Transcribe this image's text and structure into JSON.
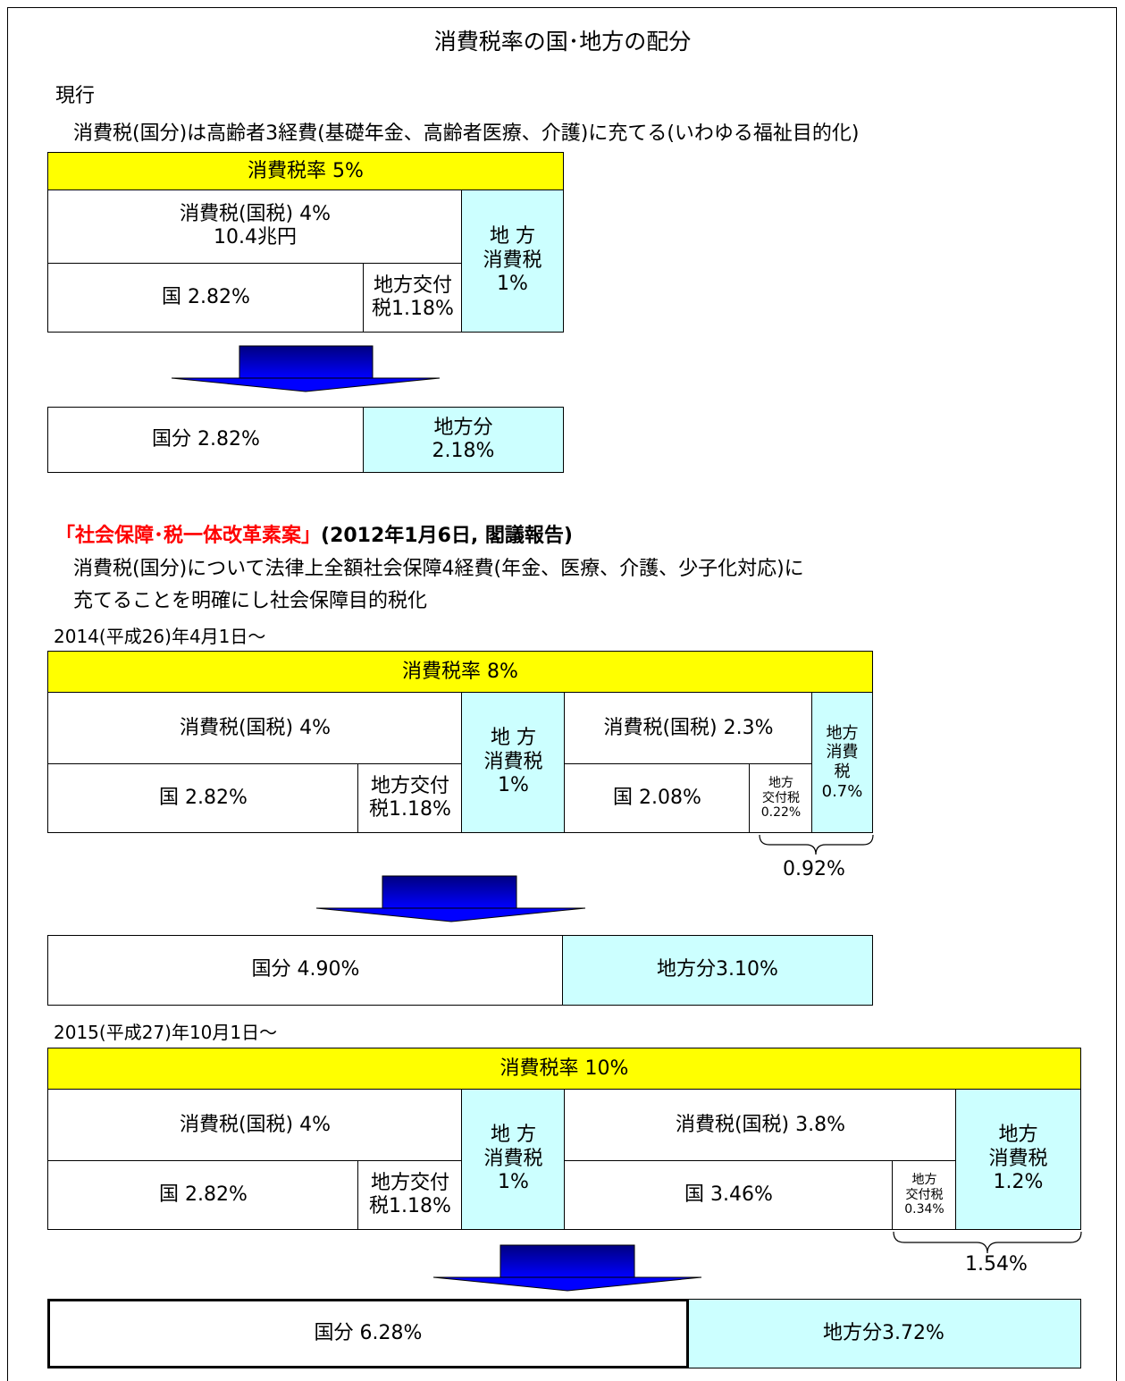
{
  "title": "消費税率の国･地方の配分",
  "current": {
    "label": "現行",
    "note": "消費税(国分)は高齢者3経費(基礎年金、高齢者医療、介護)に充てる(いわゆる福祉目的化)",
    "table": {
      "header": "消費税率  5%",
      "national_tax": "消費税(国税)  4%\n10.4兆円",
      "national": "国  2.82%",
      "grant": "地方交付\n税1.18%",
      "local": "地  方\n消費税\n1%"
    },
    "result": {
      "national": "国分  2.82%",
      "local": "地方分\n2.18%"
    }
  },
  "reform": {
    "heading": "「社会保障･税一体改革素案」",
    "heading_note": "(2012年1月6日, 閣議報告)",
    "note": [
      "消費税(国分)について法律上全額社会保障4経費(年金、医療、介護、少子化対応)に",
      "充てることを明確にし社会保障目的税化"
    ],
    "stages": [
      {
        "date": "2014(平成26)年4月1日～",
        "table": {
          "header": "消費税率  8%",
          "left": {
            "national_tax": "消費税(国税)  4%",
            "national": "国  2.82%",
            "grant": "地方交付\n税1.18%",
            "local": "地  方\n消費税\n1%"
          },
          "right": {
            "national_tax": "消費税(国税)  2.3%",
            "national": "国  2.08%",
            "grant": "地方\n交付税\n0.22%",
            "local": "地方\n消費\n税\n0.7%"
          }
        },
        "brace_label": "0.92%",
        "result": {
          "national": "国分  4.90%",
          "local": "地方分3.10%"
        }
      },
      {
        "date": "2015(平成27)年10月1日～",
        "table": {
          "header": "消費税率  10%",
          "left": {
            "national_tax": "消費税(国税)  4%",
            "national": "国  2.82%",
            "grant": "地方交付\n税1.18%",
            "local": "地  方\n消費税\n1%"
          },
          "right": {
            "national_tax": "消費税(国税)  3.8%",
            "national": "国  3.46%",
            "grant": "地方\n交付税\n0.34%",
            "local": "地方\n消費税\n1.2%"
          }
        },
        "brace_label": "1.54%",
        "result": {
          "national": "国分  6.28%",
          "local": "地方分3.72%"
        }
      }
    ]
  }
}
